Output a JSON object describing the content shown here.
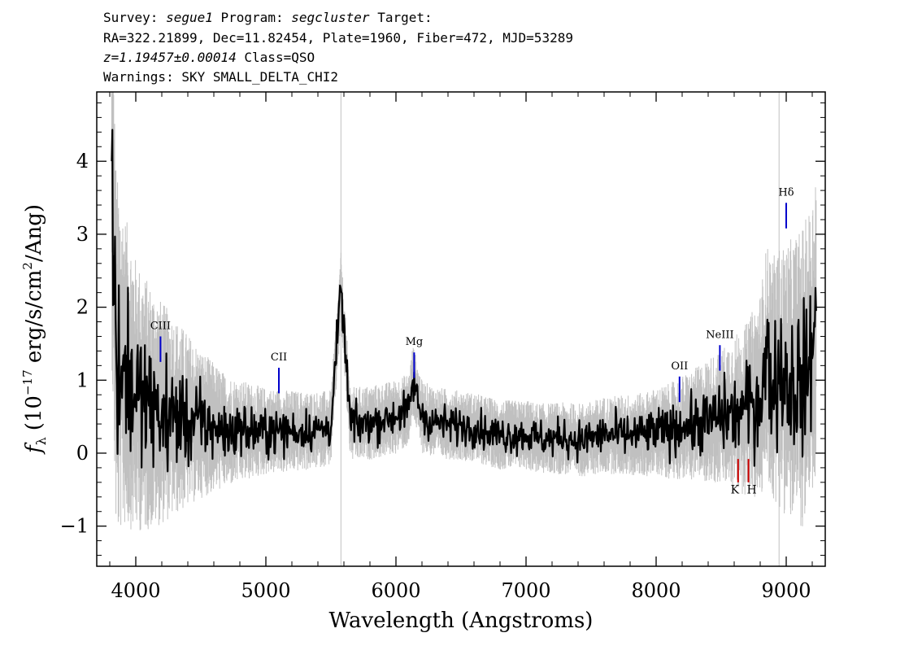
{
  "header": {
    "line1": {
      "survey_label": "Survey:",
      "survey": "segue1",
      "program_label": "Program:",
      "program": "segcluster",
      "target_label": "Target:"
    },
    "line2": "RA=322.21899, Dec=11.82454, Plate=1960, Fiber=472, MJD=53289",
    "line3": {
      "redshift": "z=1.19457±0.00014",
      "class": "Class=QSO"
    },
    "line4": "Warnings: SKY SMALL_DELTA_CHI2"
  },
  "colors": {
    "flux": "#000000",
    "noise": "#c0c0c0",
    "emission_marker": "#0000cc",
    "absorption_marker": "#cc0000",
    "sky_line": "#c0c0c0"
  },
  "chart_data": {
    "type": "line",
    "xlabel": "Wavelength (Angstroms)",
    "ylabel": "fλ (10^-17 erg/s/cm^2/Ang)",
    "ylabel_parts": {
      "f": "f",
      "lambda": "λ",
      "open": "(10",
      "exp1": "−17",
      "mid": " erg/s/cm",
      "exp2": "2",
      "close": "/Ang)"
    },
    "xlim": [
      3700,
      9300
    ],
    "ylim": [
      -1.55,
      4.95
    ],
    "x_ticks": [
      4000,
      5000,
      6000,
      7000,
      8000,
      9000
    ],
    "x_tick_labels": [
      "4000",
      "5000",
      "6000",
      "7000",
      "8000",
      "9000"
    ],
    "y_ticks": [
      -1,
      0,
      1,
      2,
      3,
      4
    ],
    "y_tick_labels": [
      "−1",
      "0",
      "1",
      "2",
      "3",
      "4"
    ],
    "sky_lines": [
      5577,
      8945
    ],
    "series": [
      {
        "role": "flux",
        "x": [
          3815,
          3830,
          3850,
          3900,
          3950,
          4000,
          4050,
          4100,
          4150,
          4200,
          4300,
          4400,
          4500,
          4600,
          4700,
          4800,
          4900,
          5000,
          5100,
          5200,
          5300,
          5400,
          5500,
          5577,
          5650,
          5700,
          5800,
          5900,
          6000,
          6100,
          6130,
          6200,
          6300,
          6400,
          6500,
          6600,
          6700,
          6800,
          6900,
          7000,
          7100,
          7200,
          7300,
          7400,
          7500,
          7600,
          7700,
          7800,
          7900,
          8000,
          8100,
          8200,
          8300,
          8400,
          8500,
          8600,
          8700,
          8800,
          8850,
          8900,
          8950,
          9000,
          9050,
          9100,
          9150,
          9200,
          9230
        ],
        "y": [
          4.0,
          2.7,
          1.3,
          1.2,
          1.0,
          0.8,
          0.7,
          0.65,
          0.6,
          0.55,
          0.5,
          0.45,
          0.4,
          0.35,
          0.3,
          0.3,
          0.3,
          0.3,
          0.3,
          0.3,
          0.3,
          0.32,
          0.35,
          2.25,
          0.4,
          0.4,
          0.42,
          0.45,
          0.5,
          0.6,
          1.0,
          0.5,
          0.42,
          0.4,
          0.38,
          0.35,
          0.3,
          0.25,
          0.25,
          0.25,
          0.2,
          0.2,
          0.2,
          0.18,
          0.2,
          0.25,
          0.25,
          0.25,
          0.25,
          0.3,
          0.3,
          0.35,
          0.4,
          0.45,
          0.5,
          0.55,
          0.6,
          0.75,
          1.3,
          1.0,
          1.05,
          1.0,
          1.0,
          1.0,
          1.1,
          1.3,
          1.95
        ]
      },
      {
        "role": "noise",
        "x": [
          3800,
          3850,
          3900,
          4000,
          4100,
          4200,
          4300,
          4400,
          4500,
          4700,
          5000,
          5500,
          6000,
          6500,
          7000,
          7500,
          8000,
          8300,
          8500,
          8700,
          8800,
          8900,
          9000,
          9100,
          9230
        ],
        "y": [
          1.6,
          1.5,
          1.3,
          1.1,
          1.0,
          0.9,
          0.8,
          0.7,
          0.6,
          0.45,
          0.35,
          0.3,
          0.3,
          0.28,
          0.28,
          0.3,
          0.35,
          0.45,
          0.55,
          0.7,
          0.85,
          1.0,
          1.1,
          1.2,
          1.3
        ]
      }
    ],
    "emission_lines": [
      {
        "label": "CIII",
        "x": 4190,
        "y1": 1.25,
        "y2": 1.6,
        "label_y": 1.7
      },
      {
        "label": "CII",
        "x": 5100,
        "y1": 0.82,
        "y2": 1.17,
        "label_y": 1.27
      },
      {
        "label": "Mg",
        "x": 6140,
        "y1": 1.03,
        "y2": 1.38,
        "label_y": 1.48
      },
      {
        "label": "OII",
        "x": 8180,
        "y1": 0.7,
        "y2": 1.05,
        "label_y": 1.15
      },
      {
        "label": "NeIII",
        "x": 8490,
        "y1": 1.13,
        "y2": 1.48,
        "label_y": 1.58
      },
      {
        "label": "Hδ",
        "x": 9000,
        "y1": 3.08,
        "y2": 3.43,
        "label_y": 3.53
      }
    ],
    "absorption_lines": [
      {
        "label": "K",
        "x": 8630,
        "y1": -0.08,
        "y2": -0.4,
        "label_y": -0.55
      },
      {
        "label": "H",
        "x": 8710,
        "y1": -0.08,
        "y2": -0.4,
        "label_y": -0.55
      }
    ]
  }
}
